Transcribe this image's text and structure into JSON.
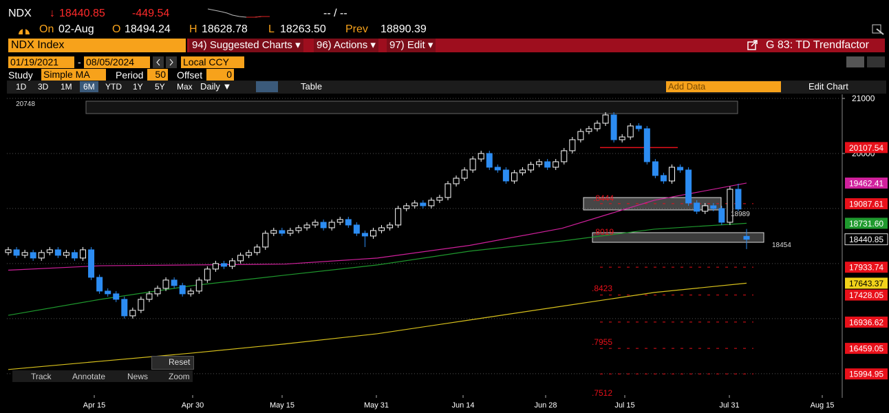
{
  "header": {
    "ticker": "NDX",
    "arrow": "↓",
    "last": "18440.85",
    "change": "-449.54",
    "bidask": "-- / --"
  },
  "quote": {
    "on": "On",
    "date": "02-Aug",
    "open_label": "O",
    "open": "18494.24",
    "high_label": "H",
    "high": "18628.78",
    "low_label": "L",
    "low": "18263.50",
    "prev_label": "Prev",
    "prev": "18890.39"
  },
  "toolbar": {
    "security": "NDX Index",
    "menus": [
      "94) Suggested Charts ▾",
      "96) Actions ▾",
      "97) Edit ▾"
    ],
    "function": "G 83: TD Trendfactor"
  },
  "range": {
    "start": "01/19/2021",
    "separator": "-",
    "end": "08/05/2024",
    "currency": "Local CCY"
  },
  "study": {
    "label": "Study",
    "value": "Simple MA",
    "period_label": "Period",
    "period": "50",
    "offset_label": "Offset",
    "offset": "0"
  },
  "periods": [
    "1D",
    "3D",
    "1M",
    "6M",
    "YTD",
    "1Y",
    "5Y",
    "Max"
  ],
  "selected_period": "6M",
  "frequency": "Daily ▼",
  "table": "Table",
  "add_data": "Add Data",
  "edit_chart": "Edit Chart",
  "chart": {
    "type": "candlestick",
    "ylim": [
      15560,
      21075
    ],
    "yticks": [
      20000,
      21000
    ],
    "grid_lines": [
      16000,
      17000,
      18000,
      19000,
      20000,
      21000
    ],
    "up_color": "#ffffff",
    "down_color": "#2c8cf2",
    "candles": [
      [
        18200,
        18300,
        18150,
        18250
      ],
      [
        18250,
        18300,
        18100,
        18150
      ],
      [
        18150,
        18250,
        18100,
        18200
      ],
      [
        18200,
        18250,
        18050,
        18100
      ],
      [
        18100,
        18250,
        18050,
        18200
      ],
      [
        18200,
        18300,
        18150,
        18250
      ],
      [
        18250,
        18300,
        18100,
        18150
      ],
      [
        18150,
        18250,
        18100,
        18200
      ],
      [
        18200,
        18250,
        18050,
        18100
      ],
      [
        18100,
        18300,
        18050,
        18250
      ],
      [
        18250,
        18300,
        17700,
        17750
      ],
      [
        17750,
        17800,
        17450,
        17500
      ],
      [
        17500,
        17550,
        17400,
        17450
      ],
      [
        17450,
        17500,
        17300,
        17350
      ],
      [
        17350,
        17400,
        17000,
        17050
      ],
      [
        17050,
        17200,
        17000,
        17150
      ],
      [
        17150,
        17400,
        17100,
        17350
      ],
      [
        17350,
        17500,
        17300,
        17450
      ],
      [
        17450,
        17600,
        17400,
        17550
      ],
      [
        17550,
        17750,
        17500,
        17700
      ],
      [
        17700,
        17750,
        17550,
        17600
      ],
      [
        17600,
        17650,
        17400,
        17450
      ],
      [
        17450,
        17550,
        17400,
        17500
      ],
      [
        17500,
        17750,
        17450,
        17700
      ],
      [
        17700,
        17950,
        17650,
        17900
      ],
      [
        17900,
        18050,
        17850,
        18000
      ],
      [
        18000,
        18050,
        17900,
        17950
      ],
      [
        17950,
        18100,
        17900,
        18050
      ],
      [
        18050,
        18200,
        18000,
        18150
      ],
      [
        18150,
        18250,
        18100,
        18200
      ],
      [
        18200,
        18350,
        18150,
        18300
      ],
      [
        18300,
        18600,
        18250,
        18550
      ],
      [
        18550,
        18650,
        18500,
        18600
      ],
      [
        18600,
        18650,
        18500,
        18550
      ],
      [
        18550,
        18650,
        18500,
        18600
      ],
      [
        18600,
        18700,
        18550,
        18650
      ],
      [
        18650,
        18750,
        18600,
        18700
      ],
      [
        18700,
        18800,
        18650,
        18750
      ],
      [
        18750,
        18800,
        18600,
        18650
      ],
      [
        18650,
        18800,
        18600,
        18750
      ],
      [
        18750,
        18850,
        18700,
        18800
      ],
      [
        18800,
        18850,
        18650,
        18700
      ],
      [
        18700,
        18750,
        18500,
        18550
      ],
      [
        18550,
        18600,
        18300,
        18500
      ],
      [
        18500,
        18650,
        18450,
        18600
      ],
      [
        18600,
        18700,
        18550,
        18650
      ],
      [
        18650,
        18750,
        18600,
        18700
      ],
      [
        18700,
        19050,
        18650,
        19000
      ],
      [
        19000,
        19100,
        18950,
        19050
      ],
      [
        19050,
        19150,
        19000,
        19100
      ],
      [
        19100,
        19150,
        19000,
        19050
      ],
      [
        19050,
        19200,
        19000,
        19150
      ],
      [
        19150,
        19250,
        19100,
        19200
      ],
      [
        19200,
        19500,
        19150,
        19450
      ],
      [
        19450,
        19600,
        19400,
        19550
      ],
      [
        19550,
        19750,
        19500,
        19700
      ],
      [
        19700,
        19950,
        19650,
        19900
      ],
      [
        19900,
        20050,
        19850,
        20000
      ],
      [
        20000,
        20050,
        19700,
        19750
      ],
      [
        19750,
        19800,
        19650,
        19700
      ],
      [
        19700,
        19750,
        19450,
        19500
      ],
      [
        19500,
        19700,
        19450,
        19650
      ],
      [
        19650,
        19750,
        19600,
        19700
      ],
      [
        19700,
        19850,
        19650,
        19800
      ],
      [
        19800,
        19900,
        19750,
        19850
      ],
      [
        19850,
        19900,
        19700,
        19750
      ],
      [
        19750,
        19900,
        19700,
        19850
      ],
      [
        19850,
        20100,
        19800,
        20050
      ],
      [
        20050,
        20300,
        20000,
        20250
      ],
      [
        20250,
        20450,
        20200,
        20400
      ],
      [
        20400,
        20500,
        20350,
        20450
      ],
      [
        20450,
        20600,
        20400,
        20550
      ],
      [
        20550,
        20750,
        20500,
        20700
      ],
      [
        20700,
        20750,
        20200,
        20250
      ],
      [
        20250,
        20350,
        20200,
        20300
      ],
      [
        20300,
        20550,
        20250,
        20500
      ],
      [
        20500,
        20550,
        20400,
        20450
      ],
      [
        20450,
        20500,
        19800,
        19850
      ],
      [
        19850,
        19900,
        19550,
        19600
      ],
      [
        19600,
        19650,
        19450,
        19500
      ],
      [
        19500,
        19800,
        19450,
        19750
      ],
      [
        19750,
        19800,
        19650,
        19700
      ],
      [
        19700,
        19750,
        19050,
        19100
      ],
      [
        19100,
        19150,
        18900,
        18950
      ],
      [
        18950,
        19100,
        18900,
        19050
      ],
      [
        19050,
        19100,
        18950,
        19000
      ],
      [
        19000,
        19050,
        18700,
        18750
      ],
      [
        18750,
        19400,
        18700,
        19350
      ],
      [
        19350,
        19450,
        18950,
        18990
      ],
      [
        18494.24,
        18628.78,
        18263.5,
        18440.85
      ]
    ],
    "moving_averages": [
      {
        "color": "#d0209c",
        "values": [
          17880,
          17960,
          17975,
          17990,
          18100,
          18330,
          18640,
          19150,
          19462.41
        ]
      },
      {
        "color": "#1f9a2e",
        "values": [
          17060,
          17350,
          17600,
          17790,
          17975,
          18225,
          18410,
          18625,
          18731.6
        ]
      },
      {
        "color": "#d9c21c",
        "values": [
          16075,
          16225,
          16375,
          16540,
          16725,
          16975,
          17225,
          17475,
          17643.37
        ]
      }
    ],
    "levels": [
      {
        "value": 20107.54,
        "color": "#e8101a",
        "style": "solid"
      },
      {
        "value": 19462.41,
        "color": "#d0209c"
      },
      {
        "value": 19087.61,
        "color": "#e8101a",
        "style": "dashed"
      },
      {
        "value": 18731.6,
        "label": "18731.60",
        "color": "#1f9a2e"
      },
      {
        "value": 18440.85,
        "color": "#f2f2f2"
      },
      {
        "value": 17933.74,
        "color": "#e8101a",
        "style": "dashed"
      },
      {
        "value": 17643.37,
        "color": "#f2d21a"
      },
      {
        "value": 17428.05,
        "color": "#e8101a",
        "style": "dashed"
      },
      {
        "value": 16936.62,
        "color": "#e8101a",
        "style": "dashed"
      },
      {
        "value": 16459.05,
        "color": "#e8101a",
        "style": "dashed"
      },
      {
        "value": 15994.95,
        "color": "#e8101a",
        "style": "dashed"
      }
    ],
    "annotations": [
      "20748",
      "18454",
      "18989",
      ".8444",
      ".8019",
      ".8423",
      ".7955",
      ".7512"
    ],
    "xticks": [
      "Apr 15",
      "Apr 30",
      "May 15",
      "May 31",
      "Jun 14",
      "Jun 28",
      "Jul 15",
      "Jul 31",
      "Aug 15"
    ]
  },
  "reset": "Reset",
  "tools": [
    "Track",
    "Annotate",
    "News",
    "Zoom"
  ]
}
